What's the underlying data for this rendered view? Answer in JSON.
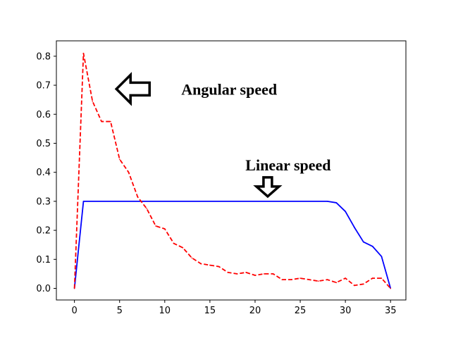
{
  "chart_data": {
    "type": "line",
    "title": "",
    "xlabel": "",
    "ylabel": "",
    "xlim": [
      -2,
      36.7
    ],
    "ylim": [
      -0.04,
      0.853
    ],
    "xticks": [
      0,
      5,
      10,
      15,
      20,
      25,
      30,
      35
    ],
    "yticks": [
      0.0,
      0.1,
      0.2,
      0.3,
      0.4,
      0.5,
      0.6,
      0.7,
      0.8
    ],
    "grid": false,
    "series": [
      {
        "color": "#0000ff",
        "linestyle": "solid",
        "x": [
          0,
          1,
          28,
          29,
          30,
          31,
          32,
          33,
          34,
          35
        ],
        "y": [
          0,
          0.3,
          0.3,
          0.295,
          0.265,
          0.21,
          0.16,
          0.145,
          0.11,
          0
        ]
      },
      {
        "color": "#ff0000",
        "linestyle": "dashed",
        "x": [
          0,
          1,
          2,
          3,
          4,
          5,
          6,
          7,
          8,
          9,
          10,
          11,
          12,
          13,
          14,
          15,
          16,
          17,
          18,
          19,
          20,
          21,
          22,
          23,
          24,
          25,
          26,
          27,
          28,
          29,
          30,
          31,
          32,
          33,
          34,
          35
        ],
        "y": [
          0,
          0.81,
          0.645,
          0.575,
          0.575,
          0.445,
          0.4,
          0.315,
          0.275,
          0.215,
          0.205,
          0.155,
          0.14,
          0.105,
          0.085,
          0.08,
          0.075,
          0.055,
          0.05,
          0.055,
          0.045,
          0.05,
          0.05,
          0.03,
          0.03,
          0.035,
          0.03,
          0.025,
          0.03,
          0.02,
          0.035,
          0.01,
          0.015,
          0.035,
          0.035,
          0
        ]
      }
    ],
    "annotations": [
      {
        "text": "Angular speed",
        "arrow": "left",
        "x": 6.6,
        "y": 0.687
      },
      {
        "text": "Linear speed",
        "arrow": "down",
        "x": 21.4,
        "y": 0.317
      }
    ]
  }
}
